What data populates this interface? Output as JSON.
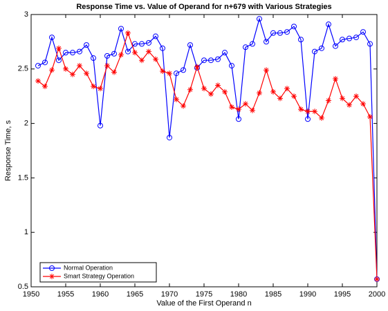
{
  "chart_data": {
    "type": "line",
    "title": "Response Time vs. Value of Operand for n+679 with Various Strategies",
    "xlabel": "Value of the First Operand n",
    "ylabel": "Response Time, s",
    "x": [
      1951,
      1952,
      1953,
      1954,
      1955,
      1956,
      1957,
      1958,
      1959,
      1960,
      1961,
      1962,
      1963,
      1964,
      1965,
      1966,
      1967,
      1968,
      1969,
      1970,
      1971,
      1972,
      1973,
      1974,
      1975,
      1976,
      1977,
      1978,
      1979,
      1980,
      1981,
      1982,
      1983,
      1984,
      1985,
      1986,
      1987,
      1988,
      1989,
      1990,
      1991,
      1992,
      1993,
      1994,
      1995,
      1996,
      1997,
      1998,
      1999,
      2000
    ],
    "series": [
      {
        "name": "Normal Operation",
        "color": "#0000ff",
        "marker": "circle",
        "values": [
          2.53,
          2.56,
          2.79,
          2.58,
          2.65,
          2.65,
          2.66,
          2.72,
          2.6,
          1.98,
          2.62,
          2.64,
          2.87,
          2.66,
          2.73,
          2.73,
          2.74,
          2.8,
          2.69,
          1.87,
          2.46,
          2.49,
          2.72,
          2.51,
          2.58,
          2.58,
          2.59,
          2.65,
          2.53,
          2.04,
          2.7,
          2.73,
          2.96,
          2.75,
          2.83,
          2.83,
          2.84,
          2.89,
          2.77,
          2.04,
          2.66,
          2.69,
          2.91,
          2.71,
          2.77,
          2.78,
          2.79,
          2.84,
          2.73,
          0.57
        ]
      },
      {
        "name": "Smart Strategy Operation",
        "color": "#ff0000",
        "marker": "asterisk",
        "values": [
          2.39,
          2.34,
          2.49,
          2.69,
          2.5,
          2.45,
          2.53,
          2.46,
          2.34,
          2.32,
          2.53,
          2.47,
          2.63,
          2.83,
          2.65,
          2.58,
          2.66,
          2.59,
          2.48,
          2.46,
          2.22,
          2.16,
          2.31,
          2.52,
          2.32,
          2.27,
          2.35,
          2.29,
          2.15,
          2.13,
          2.18,
          2.12,
          2.28,
          2.49,
          2.29,
          2.23,
          2.32,
          2.25,
          2.13,
          2.11,
          2.11,
          2.05,
          2.21,
          2.41,
          2.23,
          2.17,
          2.25,
          2.18,
          2.06,
          0.57
        ]
      }
    ],
    "xlim": [
      1950,
      2000
    ],
    "xticks": [
      1950,
      1955,
      1960,
      1965,
      1970,
      1975,
      1980,
      1985,
      1990,
      1995,
      2000
    ],
    "ylim": [
      0.5,
      3
    ],
    "yticks": [
      0.5,
      1,
      1.5,
      2,
      2.5,
      3
    ],
    "grid": false,
    "legend": "lower left"
  }
}
